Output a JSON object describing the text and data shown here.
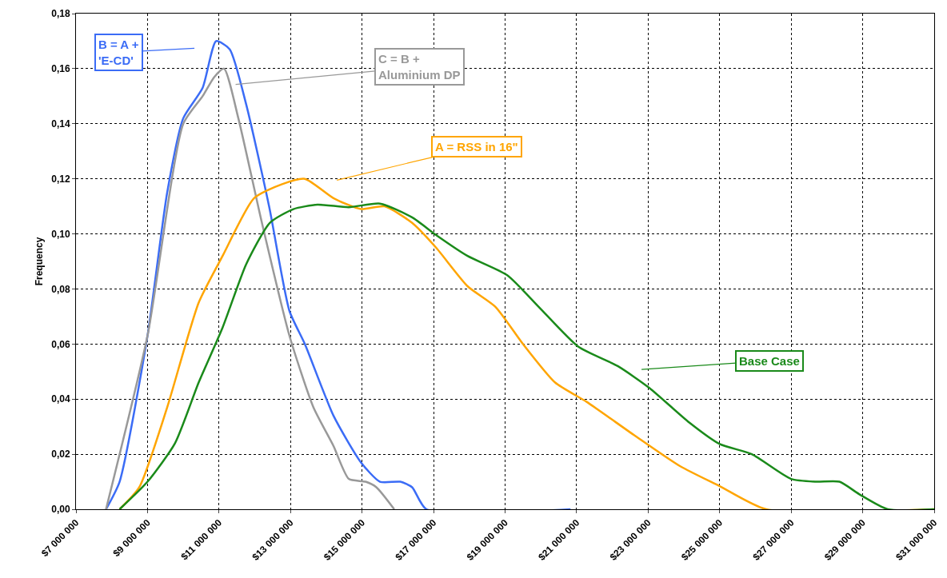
{
  "chart_data": {
    "type": "line",
    "ylabel": "Frequency",
    "xlim": [
      7000000,
      31000000
    ],
    "xticks": [
      {
        "value": 7000000,
        "label": "$7 000 000"
      },
      {
        "value": 9000000,
        "label": "$9 000 000"
      },
      {
        "value": 11000000,
        "label": "$11 000 000"
      },
      {
        "value": 13000000,
        "label": "$13 000 000"
      },
      {
        "value": 15000000,
        "label": "$15 000 000"
      },
      {
        "value": 17000000,
        "label": "$17 000 000"
      },
      {
        "value": 19000000,
        "label": "$19 000 000"
      },
      {
        "value": 21000000,
        "label": "$21 000 000"
      },
      {
        "value": 23000000,
        "label": "$23 000 000"
      },
      {
        "value": 25000000,
        "label": "$25 000 000"
      },
      {
        "value": 27000000,
        "label": "$27 000 000"
      },
      {
        "value": 29000000,
        "label": "$29 000 000"
      },
      {
        "value": 31000000,
        "label": "$31 000 000"
      }
    ],
    "ylim": [
      0,
      0.18
    ],
    "yticks": [
      {
        "value": 0,
        "label": "0,00"
      },
      {
        "value": 0.02,
        "label": "0,02"
      },
      {
        "value": 0.04,
        "label": "0,04"
      },
      {
        "value": 0.06,
        "label": "0,06"
      },
      {
        "value": 0.08,
        "label": "0,08"
      },
      {
        "value": 0.1,
        "label": "0,10"
      },
      {
        "value": 0.12,
        "label": "0,12"
      },
      {
        "value": 0.14,
        "label": "0,14"
      },
      {
        "value": 0.16,
        "label": "0,16"
      },
      {
        "value": 0.18,
        "label": "0,18"
      }
    ],
    "grid": true,
    "marker": "none",
    "line_style": "solid",
    "series": [
      {
        "color": "#3b6cf6",
        "x": [
          7840000,
          8220000,
          9000000,
          9550000,
          10000000,
          10540000,
          10920000,
          11300000,
          11760000,
          12400000,
          12970000,
          13400000,
          14200000,
          14970000,
          15500000,
          16070000,
          16400000,
          16800000,
          20830000
        ],
        "values": [
          0,
          0.01,
          0.063,
          0.115,
          0.142,
          0.153,
          0.17,
          0.167,
          0.147,
          0.11,
          0.072,
          0.06,
          0.034,
          0.017,
          0.01,
          0.01,
          0.008,
          0,
          0
        ]
      },
      {
        "color": "#999999",
        "x": [
          7840000,
          9000000,
          10000000,
          10540000,
          10870000,
          11140000,
          11540000,
          12200000,
          12970000,
          13640000,
          14200000,
          14630000,
          15100000,
          15400000,
          15900000
        ],
        "values": [
          0,
          0.063,
          0.14,
          0.15,
          0.157,
          0.16,
          0.142,
          0.104,
          0.063,
          0.037,
          0.023,
          0.011,
          0.01,
          0.008,
          0
        ]
      },
      {
        "color": "#ffa500",
        "x": [
          8220000,
          8770000,
          9550000,
          10430000,
          11100000,
          11980000,
          12750000,
          13400000,
          14200000,
          14970000,
          15630000,
          16400000,
          17070000,
          17950000,
          18730000,
          19500000,
          20400000,
          21280000,
          22600000,
          23900000,
          25000000,
          26300000,
          31000000
        ],
        "values": [
          0,
          0.008,
          0.037,
          0.075,
          0.092,
          0.113,
          0.118,
          0.12,
          0.113,
          0.109,
          0.11,
          0.104,
          0.095,
          0.081,
          0.0735,
          0.06,
          0.046,
          0.039,
          0.027,
          0.0156,
          0.0084,
          0,
          0
        ]
      },
      {
        "color": "#1a8a1a",
        "x": [
          8220000,
          9000000,
          9770000,
          10430000,
          11100000,
          11760000,
          12420000,
          13080000,
          13750000,
          14630000,
          15500000,
          16400000,
          17070000,
          17950000,
          19060000,
          19940000,
          21050000,
          22150000,
          23040000,
          24150000,
          25000000,
          25900000,
          27000000,
          27700000,
          28350000,
          28900000,
          29700000,
          31000000
        ],
        "values": [
          0,
          0.01,
          0.024,
          0.046,
          0.066,
          0.089,
          0.104,
          0.109,
          0.1106,
          0.1097,
          0.111,
          0.106,
          0.0996,
          0.092,
          0.085,
          0.0735,
          0.059,
          0.052,
          0.044,
          0.0315,
          0.0237,
          0.02,
          0.011,
          0.01,
          0.01,
          0.0055,
          0,
          0
        ]
      }
    ],
    "annotations": [
      "B = A +\n'E-CD'",
      "C = B +\nAluminium DP",
      "A = RSS in 16\"",
      "Base Case"
    ]
  }
}
